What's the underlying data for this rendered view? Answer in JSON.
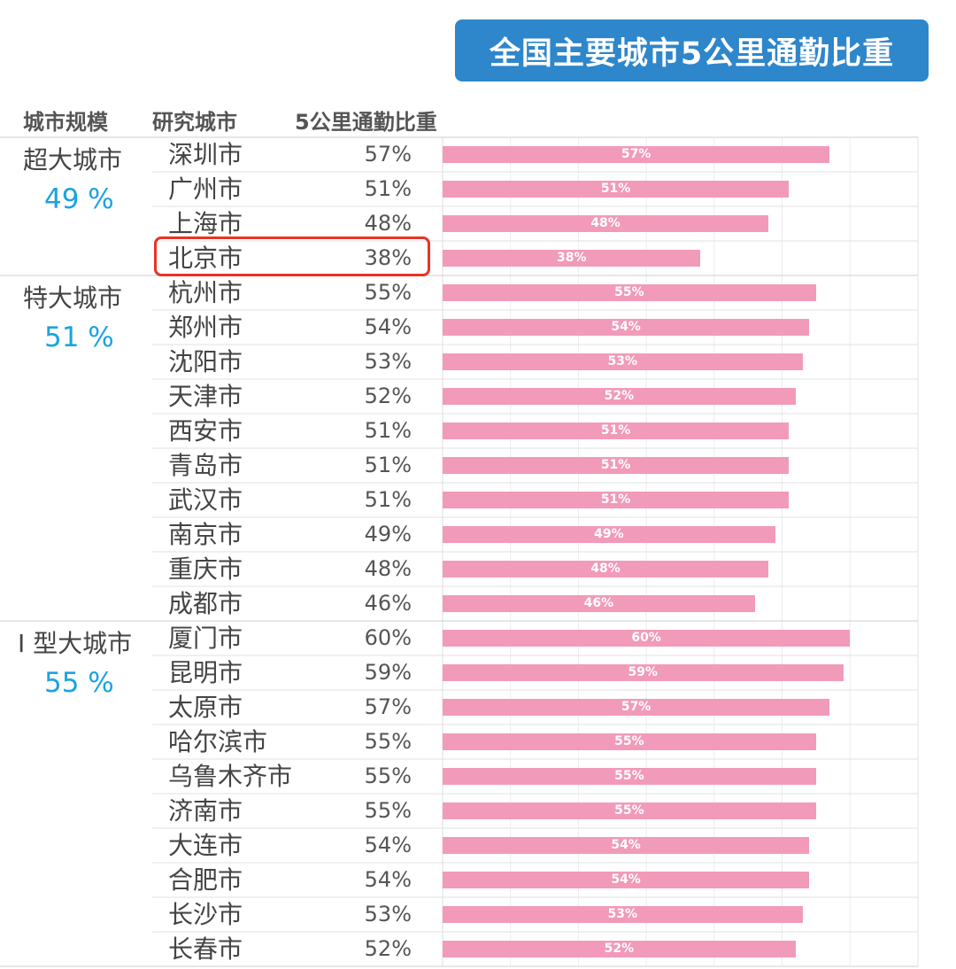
{
  "title": "全国主要城市5公里通勤比重",
  "headers": {
    "scale": "城市规模",
    "city": "研究城市",
    "ratio": "5公里通勤比重"
  },
  "colors": {
    "title_bg": "#2e86cb",
    "bar": "#f29ab9",
    "group_pct": "#1aa3e0",
    "highlight": "#ea3323"
  },
  "chart_data": {
    "type": "bar",
    "orientation": "horizontal",
    "xlim": [
      0,
      70
    ],
    "grid": true,
    "highlighted": "北京市",
    "groups": [
      {
        "name": "超大城市",
        "pct": "49 %",
        "start": 0,
        "count": 4
      },
      {
        "name": "特大城市",
        "pct": "51 %",
        "start": 4,
        "count": 10
      },
      {
        "name": "I 型大城市",
        "pct": "55 %",
        "start": 14,
        "count": 10
      }
    ],
    "categories": [
      "深圳市",
      "广州市",
      "上海市",
      "北京市",
      "杭州市",
      "郑州市",
      "沈阳市",
      "天津市",
      "西安市",
      "青岛市",
      "武汉市",
      "南京市",
      "重庆市",
      "成都市",
      "厦门市",
      "昆明市",
      "太原市",
      "哈尔滨市",
      "乌鲁木齐市",
      "济南市",
      "大连市",
      "合肥市",
      "长沙市",
      "长春市"
    ],
    "values": [
      57,
      51,
      48,
      38,
      55,
      54,
      53,
      52,
      51,
      51,
      51,
      49,
      48,
      46,
      60,
      59,
      57,
      55,
      55,
      55,
      54,
      54,
      53,
      52
    ],
    "labels": [
      "57%",
      "51%",
      "48%",
      "38%",
      "55%",
      "54%",
      "53%",
      "52%",
      "51%",
      "51%",
      "51%",
      "49%",
      "48%",
      "46%",
      "60%",
      "59%",
      "57%",
      "55%",
      "55%",
      "55%",
      "54%",
      "54%",
      "53%",
      "52%"
    ]
  }
}
